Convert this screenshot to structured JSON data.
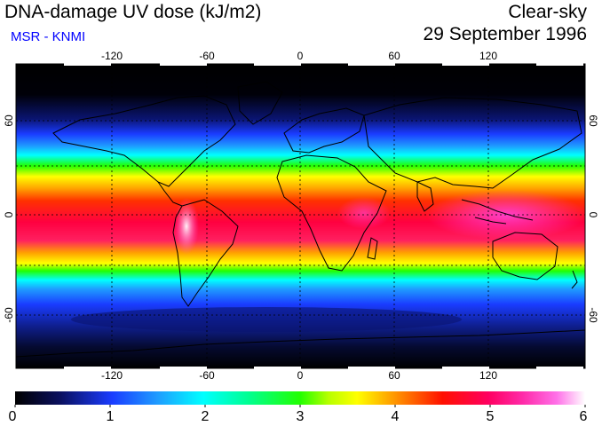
{
  "header": {
    "title": "DNA-damage UV dose (kJ/m2)",
    "subtitle": "MSR - KNMI",
    "condition": "Clear-sky",
    "date": "29 September 1996"
  },
  "colors": {
    "subtitle": "#0000ff",
    "colorbar": [
      "#000000",
      "#0f1f70",
      "#1a3cff",
      "#1f9cff",
      "#00ffff",
      "#00ff90",
      "#22ff00",
      "#b8ff00",
      "#ffff00",
      "#ffb000",
      "#ff3000",
      "#ff0050",
      "#ff2aa8",
      "#ff70e8",
      "#ffffff"
    ]
  },
  "map": {
    "lon_ticks": [
      "-120",
      "-60",
      "0",
      "60",
      "120"
    ],
    "lat_ticks": [
      "60",
      "0",
      "-60"
    ],
    "right_lat_ticks": [
      "60",
      "0",
      "-60"
    ]
  },
  "colorbar": {
    "labels": [
      "0",
      "1",
      "2",
      "3",
      "4",
      "5",
      "6"
    ],
    "min": 0,
    "max": 6
  }
}
